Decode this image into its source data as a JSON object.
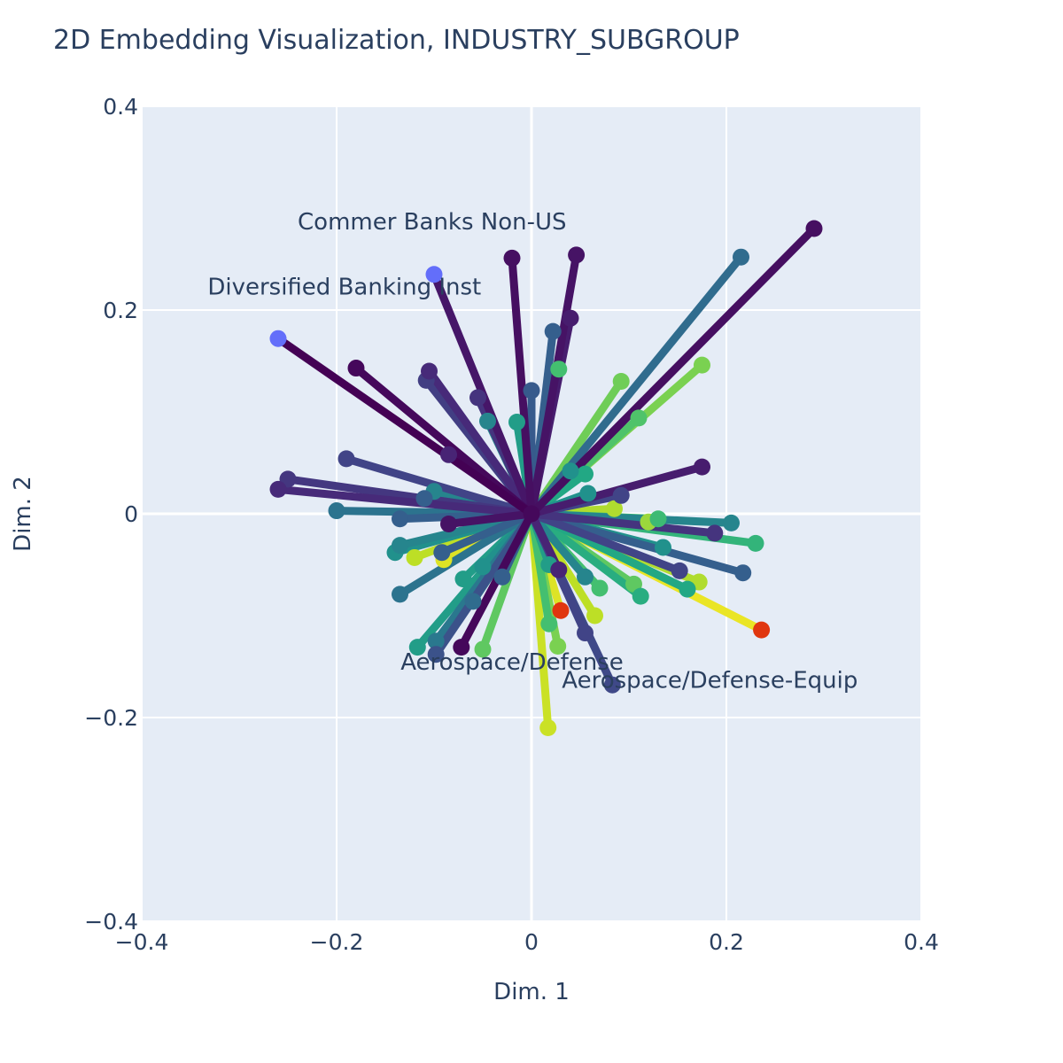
{
  "chart_data": {
    "type": "scatter",
    "title": "2D Embedding Visualization, INDUSTRY_SUBGROUP",
    "xlabel": "Dim. 1",
    "ylabel": "Dim. 2",
    "xlim": [
      -0.4,
      0.4
    ],
    "ylim": [
      -0.4,
      0.4
    ],
    "x_ticks": [
      "−0.4",
      "−0.2",
      "0",
      "0.2",
      "0.4"
    ],
    "y_ticks": [
      "−0.4",
      "−0.2",
      "0",
      "0.2",
      "0.4"
    ],
    "grid": true,
    "background": "#e5ecf6",
    "colorscale": "viridis",
    "origin": [
      0,
      0
    ],
    "highlight_color": "#636efa",
    "highlight_color_2": "#e0360f",
    "rays": [
      {
        "x": -0.26,
        "y": 0.172,
        "c": 0.0,
        "hl": "blue"
      },
      {
        "x": -0.18,
        "y": 0.143,
        "c": 0.02
      },
      {
        "x": -0.1,
        "y": 0.235,
        "c": 0.06,
        "hl": "blue"
      },
      {
        "x": -0.02,
        "y": 0.251,
        "c": 0.04
      },
      {
        "x": 0.046,
        "y": 0.254,
        "c": 0.05
      },
      {
        "x": 0.04,
        "y": 0.192,
        "c": 0.08
      },
      {
        "x": 0.29,
        "y": 0.28,
        "c": 0.04
      },
      {
        "x": 0.215,
        "y": 0.252,
        "c": 0.35
      },
      {
        "x": 0.175,
        "y": 0.146,
        "c": 0.8
      },
      {
        "x": 0.092,
        "y": 0.13,
        "c": 0.78
      },
      {
        "x": 0.11,
        "y": 0.094,
        "c": 0.72
      },
      {
        "x": 0.028,
        "y": 0.142,
        "c": 0.7
      },
      {
        "x": 0.022,
        "y": 0.179,
        "c": 0.3
      },
      {
        "x": 0.0,
        "y": 0.121,
        "c": 0.28
      },
      {
        "x": -0.015,
        "y": 0.09,
        "c": 0.55
      },
      {
        "x": -0.045,
        "y": 0.091,
        "c": 0.45
      },
      {
        "x": -0.055,
        "y": 0.114,
        "c": 0.15
      },
      {
        "x": -0.105,
        "y": 0.14,
        "c": 0.12
      },
      {
        "x": -0.108,
        "y": 0.131,
        "c": 0.18
      },
      {
        "x": -0.085,
        "y": 0.058,
        "c": 0.1
      },
      {
        "x": 0.04,
        "y": 0.042,
        "c": 0.5
      },
      {
        "x": 0.055,
        "y": 0.039,
        "c": 0.6
      },
      {
        "x": 0.058,
        "y": 0.02,
        "c": 0.5
      },
      {
        "x": 0.092,
        "y": 0.018,
        "c": 0.2
      },
      {
        "x": 0.175,
        "y": 0.046,
        "c": 0.08
      },
      {
        "x": -0.19,
        "y": 0.054,
        "c": 0.2
      },
      {
        "x": -0.25,
        "y": 0.034,
        "c": 0.16
      },
      {
        "x": -0.26,
        "y": 0.024,
        "c": 0.12
      },
      {
        "x": -0.2,
        "y": 0.003,
        "c": 0.38
      },
      {
        "x": -0.1,
        "y": 0.022,
        "c": 0.45
      },
      {
        "x": -0.11,
        "y": 0.015,
        "c": 0.3
      },
      {
        "x": -0.135,
        "y": -0.005,
        "c": 0.3
      },
      {
        "x": -0.085,
        "y": -0.01,
        "c": 0.05
      },
      {
        "x": -0.135,
        "y": -0.031,
        "c": 0.45
      },
      {
        "x": -0.14,
        "y": -0.038,
        "c": 0.5
      },
      {
        "x": -0.12,
        "y": -0.043,
        "c": 0.9
      },
      {
        "x": -0.092,
        "y": -0.038,
        "c": 0.3
      },
      {
        "x": -0.09,
        "y": -0.045,
        "c": 0.95
      },
      {
        "x": -0.135,
        "y": -0.079,
        "c": 0.38
      },
      {
        "x": -0.05,
        "y": -0.052,
        "c": 0.5
      },
      {
        "x": -0.03,
        "y": -0.062,
        "c": 0.3
      },
      {
        "x": -0.07,
        "y": -0.064,
        "c": 0.55
      },
      {
        "x": -0.06,
        "y": -0.086,
        "c": 0.35
      },
      {
        "x": -0.117,
        "y": -0.131,
        "c": 0.55
      },
      {
        "x": -0.098,
        "y": -0.125,
        "c": 0.4
      },
      {
        "x": -0.098,
        "y": -0.138,
        "c": 0.25
      },
      {
        "x": -0.072,
        "y": -0.131,
        "c": 0.02
      },
      {
        "x": -0.05,
        "y": -0.133,
        "c": 0.75
      },
      {
        "x": 0.017,
        "y": -0.21,
        "c": 0.92
      },
      {
        "x": 0.018,
        "y": -0.108,
        "c": 0.7
      },
      {
        "x": 0.027,
        "y": -0.13,
        "c": 0.8
      },
      {
        "x": 0.03,
        "y": -0.095,
        "c": 0.95,
        "hl": "red"
      },
      {
        "x": 0.028,
        "y": -0.055,
        "c": 0.1
      },
      {
        "x": 0.018,
        "y": -0.05,
        "c": 0.55
      },
      {
        "x": 0.055,
        "y": -0.117,
        "c": 0.2
      },
      {
        "x": 0.083,
        "y": -0.168,
        "c": 0.22
      },
      {
        "x": 0.065,
        "y": -0.1,
        "c": 0.9
      },
      {
        "x": 0.055,
        "y": -0.062,
        "c": 0.45
      },
      {
        "x": 0.07,
        "y": -0.073,
        "c": 0.7
      },
      {
        "x": 0.105,
        "y": -0.069,
        "c": 0.75
      },
      {
        "x": 0.112,
        "y": -0.081,
        "c": 0.62
      },
      {
        "x": 0.16,
        "y": -0.074,
        "c": 0.6
      },
      {
        "x": 0.172,
        "y": -0.067,
        "c": 0.88
      },
      {
        "x": 0.135,
        "y": -0.033,
        "c": 0.5
      },
      {
        "x": 0.152,
        "y": -0.056,
        "c": 0.2
      },
      {
        "x": 0.217,
        "y": -0.058,
        "c": 0.3
      },
      {
        "x": 0.23,
        "y": -0.029,
        "c": 0.65
      },
      {
        "x": 0.205,
        "y": -0.009,
        "c": 0.45
      },
      {
        "x": 0.188,
        "y": -0.019,
        "c": 0.15
      },
      {
        "x": 0.13,
        "y": -0.005,
        "c": 0.68
      },
      {
        "x": 0.12,
        "y": -0.008,
        "c": 0.85
      },
      {
        "x": 0.085,
        "y": 0.005,
        "c": 0.88
      },
      {
        "x": 0.236,
        "y": -0.114,
        "c": 0.97,
        "hl": "red"
      }
    ],
    "annotations": [
      {
        "text": "Commer Banks Non-US",
        "x": -0.102,
        "y": 0.287
      },
      {
        "text": "Diversified Banking Inst",
        "x": -0.192,
        "y": 0.223
      },
      {
        "text": "Aerospace/Defense",
        "x": -0.02,
        "y": -0.145
      },
      {
        "text": "Aerospace/Defense-Equip",
        "x": 0.183,
        "y": -0.163
      }
    ]
  }
}
